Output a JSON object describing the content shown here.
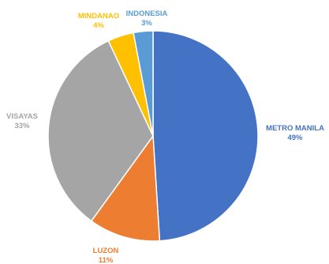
{
  "chart_data": {
    "type": "pie",
    "start_angle_deg": 0,
    "direction": "clockwise",
    "slices": [
      {
        "label": "METRO MANILA",
        "value": 49,
        "value_label": "49%",
        "color": "#4472C4"
      },
      {
        "label": "LUZON",
        "value": 11,
        "value_label": "11%",
        "color": "#ED7D31"
      },
      {
        "label": "VISAYAS",
        "value": 33,
        "value_label": "33%",
        "color": "#A5A5A5"
      },
      {
        "label": "MINDANAO",
        "value": 4,
        "value_label": "4%",
        "color": "#FFC000"
      },
      {
        "label": "INDONESIA",
        "value": 3,
        "value_label": "3%",
        "color": "#5B9BD5"
      }
    ],
    "legend": "none",
    "title": ""
  }
}
